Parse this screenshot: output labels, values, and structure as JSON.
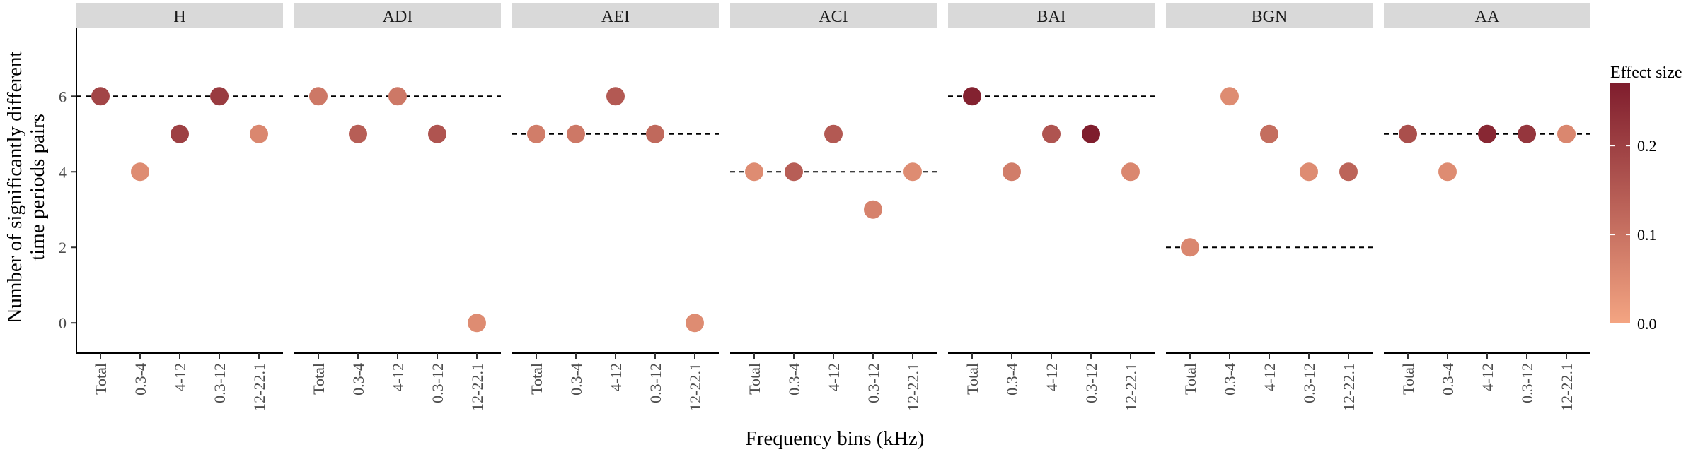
{
  "chart_data": {
    "type": "scatter",
    "facets": [
      "H",
      "ADI",
      "AEI",
      "ACI",
      "BAI",
      "BGN",
      "AA"
    ],
    "categories": [
      "Total",
      "0.3-4",
      "4-12",
      "0.3-12",
      "12-22.1"
    ],
    "xlabel": "Frequency bins (kHz)",
    "ylabel_lines": [
      "Number of significantly different",
      "time periods pairs"
    ],
    "ylim": [
      -0.8,
      7.8
    ],
    "yticks": [
      0,
      2,
      4,
      6
    ],
    "yticks_labels": [
      "0",
      "2",
      "4",
      "6"
    ],
    "series": [
      {
        "facet": "H",
        "values": [
          6,
          4,
          5,
          6,
          5
        ],
        "effect_size": [
          0.19,
          0.05,
          0.2,
          0.21,
          0.06
        ],
        "reference_line": 6
      },
      {
        "facet": "ADI",
        "values": [
          6,
          5,
          6,
          5,
          0
        ],
        "effect_size": [
          0.09,
          0.14,
          0.09,
          0.16,
          0.05
        ],
        "reference_line": 6
      },
      {
        "facet": "AEI",
        "values": [
          5,
          5,
          6,
          5,
          0
        ],
        "effect_size": [
          0.08,
          0.09,
          0.15,
          0.12,
          0.05
        ],
        "reference_line": 5
      },
      {
        "facet": "ACI",
        "values": [
          4,
          4,
          5,
          3,
          4
        ],
        "effect_size": [
          0.05,
          0.14,
          0.15,
          0.07,
          0.05
        ],
        "reference_line": 4
      },
      {
        "facet": "BAI",
        "values": [
          6,
          4,
          5,
          5,
          4
        ],
        "effect_size": [
          0.26,
          0.08,
          0.16,
          0.27,
          0.06
        ],
        "reference_line": 6
      },
      {
        "facet": "BGN",
        "values": [
          2,
          6,
          5,
          4,
          4
        ],
        "effect_size": [
          0.06,
          0.05,
          0.11,
          0.05,
          0.13
        ],
        "reference_line": 2
      },
      {
        "facet": "AA",
        "values": [
          5,
          4,
          5,
          5,
          5
        ],
        "effect_size": [
          0.17,
          0.05,
          0.25,
          0.22,
          0.06
        ],
        "reference_line": 5
      }
    ],
    "legend": {
      "title": "Effect size",
      "range": [
        0,
        0.27
      ],
      "ticks": [
        0.0,
        0.1,
        0.2
      ],
      "tick_labels": [
        "0.0",
        "0.1",
        "0.2"
      ],
      "color_low": "#f4a582",
      "color_high": "#7f1d2d",
      "placement": "right"
    },
    "grid": false
  }
}
